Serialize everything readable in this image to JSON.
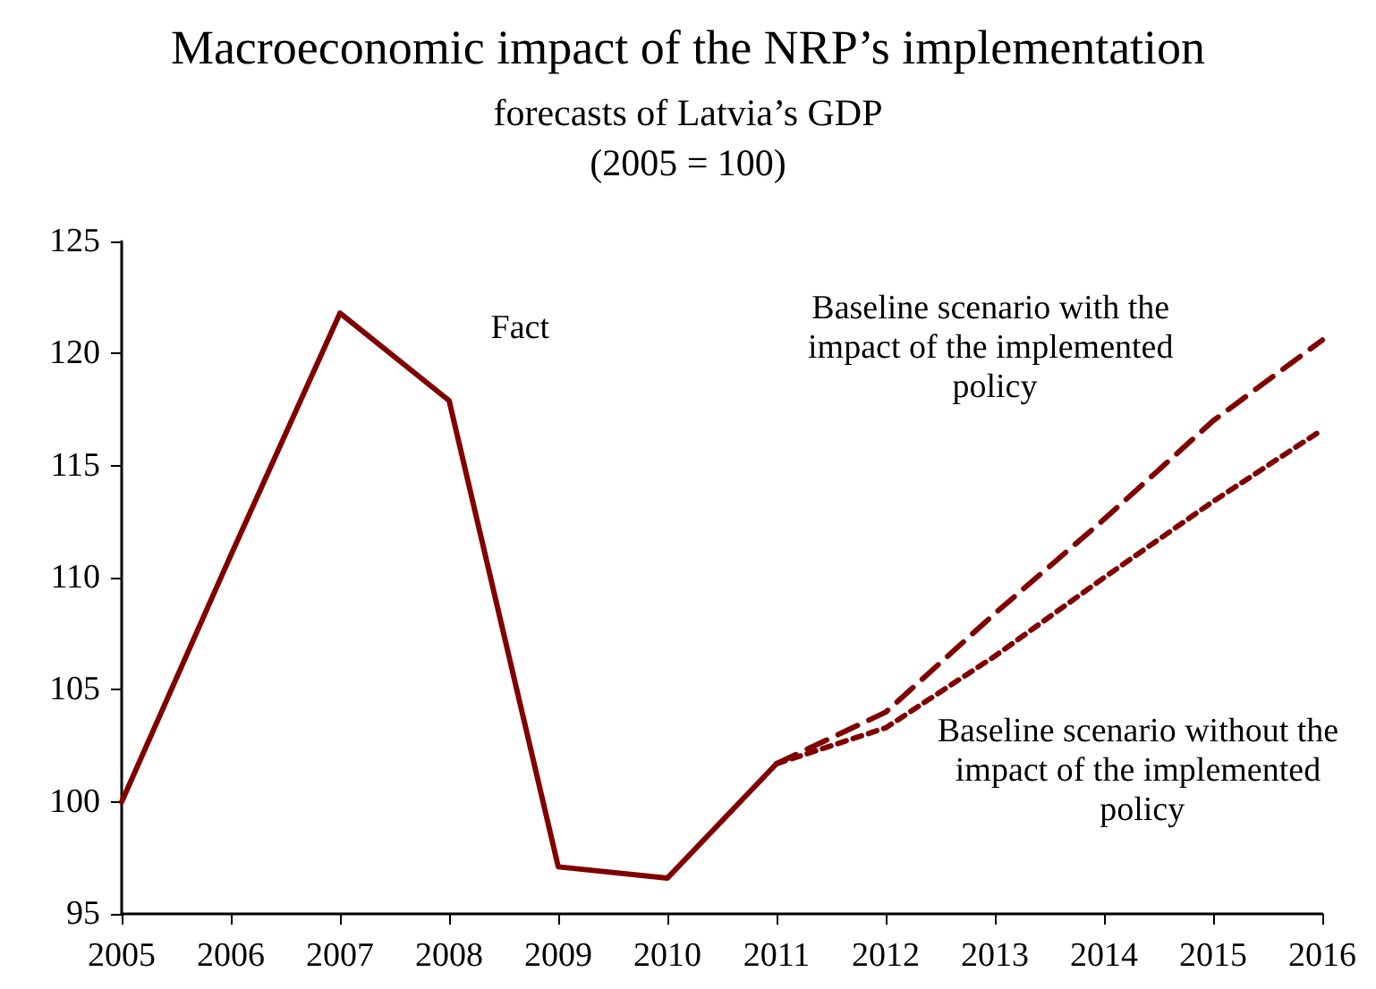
{
  "chart_data": {
    "type": "line",
    "title": "Macroeconomic impact of the NRP’s implementation",
    "subtitle": "forecasts of Latvia’s GDP\n(2005 = 100)",
    "series": [
      {
        "name": "Fact",
        "color": "#800000",
        "line_style": "solid",
        "x": [
          2005,
          2006,
          2007,
          2008,
          2009,
          2010,
          2011
        ],
        "values": [
          100,
          111,
          121.8,
          117.9,
          97.1,
          96.6,
          101.7
        ]
      },
      {
        "name": "Baseline scenario with the impact of the implemented policy",
        "color": "#800000",
        "line_style": "dashed",
        "x": [
          2011,
          2012,
          2013,
          2014,
          2015,
          2016
        ],
        "values": [
          101.7,
          104,
          108.4,
          112.6,
          117,
          120.6
        ]
      },
      {
        "name": "Baseline scenario without the impact of the implemented policy",
        "color": "#800000",
        "line_style": "dashed",
        "x": [
          2011,
          2012,
          2013,
          2014,
          2015,
          2016
        ],
        "values": [
          101.7,
          103.3,
          106.5,
          110,
          113.4,
          116.6
        ]
      }
    ],
    "xlim": [
      2005,
      2016
    ],
    "xticks": [
      2005,
      2006,
      2007,
      2008,
      2009,
      2010,
      2011,
      2012,
      2013,
      2014,
      2015,
      2016
    ],
    "ylim": [
      95,
      125
    ],
    "yticks": [
      95,
      100,
      105,
      110,
      115,
      120,
      125
    ],
    "grid": false,
    "legend": false,
    "marker": "none"
  }
}
